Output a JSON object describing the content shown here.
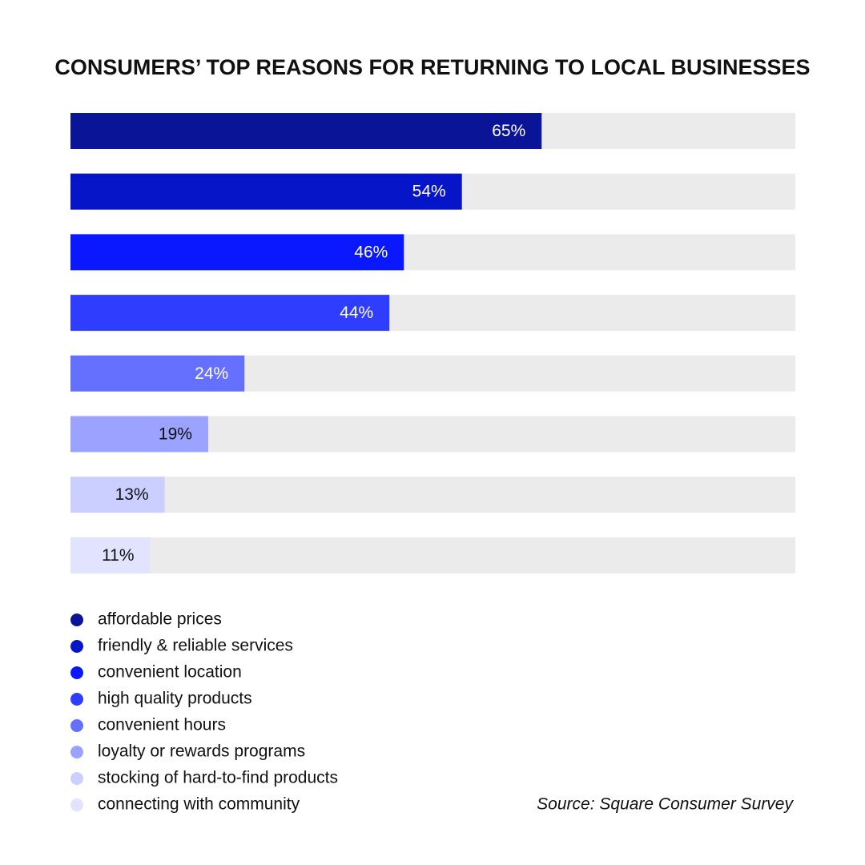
{
  "chart_data": {
    "type": "bar",
    "orientation": "horizontal",
    "title": "CONSUMERS’ TOP REASONS FOR RETURNING TO LOCAL BUSINESSES",
    "categories": [
      "affordable prices",
      "friendly & reliable services",
      "convenient location",
      "high quality products",
      "convenient hours",
      "loyalty or rewards programs",
      "stocking of hard-to-find products",
      "connecting with community"
    ],
    "values": [
      65,
      54,
      46,
      44,
      24,
      19,
      13,
      11
    ],
    "value_labels": [
      "65%",
      "54%",
      "46%",
      "44%",
      "24%",
      "19%",
      "13%",
      "11%"
    ],
    "colors": [
      "#0a1496",
      "#0715c8",
      "#0a18ff",
      "#2f3dff",
      "#6670ff",
      "#9ba2ff",
      "#cbcfff",
      "#e1e3ff"
    ],
    "track_color": "#ebebeb",
    "xlim": [
      0,
      100
    ],
    "source": "Source: Square Consumer Survey"
  }
}
